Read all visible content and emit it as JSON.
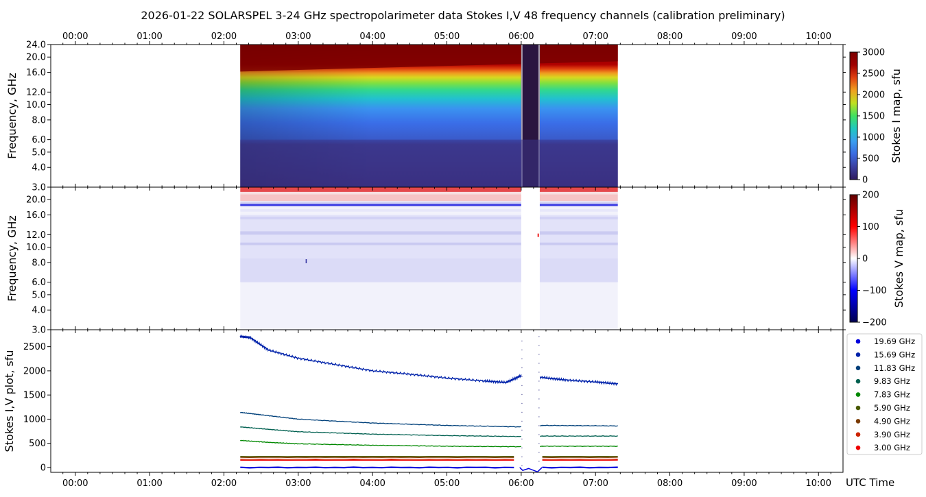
{
  "title": "2026-01-22  SOLARSPEL  3-24 GHz spectropolarimeter data   Stokes I,V   48 frequency channels   (calibration preliminary)",
  "time_axis_label": "UTC Time",
  "time_ticks": [
    "00:00",
    "01:00",
    "02:00",
    "03:00",
    "04:00",
    "05:00",
    "06:00",
    "07:00",
    "08:00",
    "09:00",
    "10:00"
  ],
  "colors": {
    "panel_border": "#000000",
    "gap_color": "#2a1540"
  },
  "chart_data": [
    {
      "type": "heatmap",
      "name": "Stokes I map",
      "ylabel": "Frequency, GHz",
      "y_scale": "log",
      "ylim": [
        3.0,
        24.0
      ],
      "y_ticks": [
        "24.0",
        "20.0",
        "16.0",
        "12.0",
        "10.0",
        "8.0",
        "6.0",
        "5.0",
        "4.0",
        "3.0"
      ],
      "xlim_hours": [
        -0.33,
        10.33
      ],
      "data_start_hours": 2.22,
      "data_end_hours": 7.3,
      "gap_hours": [
        6.0,
        6.25
      ],
      "colorbar": {
        "label": "Stokes I map, sfu",
        "range": [
          0,
          3000
        ],
        "ticks": [
          "3000",
          "2500",
          "2000",
          "1500",
          "1000",
          "500",
          "0"
        ],
        "colors": [
          "#2e1a5e",
          "#3a3fa0",
          "#3a6ae0",
          "#3a9ef0",
          "#20c8c0",
          "#40e060",
          "#c0e020",
          "#f0a020",
          "#e04010",
          "#a00000",
          "#7a0000"
        ]
      }
    },
    {
      "type": "heatmap",
      "name": "Stokes V map",
      "ylabel": "Frequency, GHz",
      "y_scale": "log",
      "ylim": [
        3.0,
        24.0
      ],
      "y_ticks": [
        "20.0",
        "16.0",
        "12.0",
        "10.0",
        "8.0",
        "6.0",
        "5.0",
        "4.0",
        "3.0"
      ],
      "xlim_hours": [
        -0.33,
        10.33
      ],
      "data_start_hours": 2.22,
      "data_end_hours": 7.3,
      "gap_hours": [
        6.0,
        6.25
      ],
      "colorbar": {
        "label": "Stokes V map, sfu",
        "range": [
          -200,
          200
        ],
        "ticks": [
          "200",
          "100",
          "0",
          "−100",
          "−200"
        ],
        "colors": [
          "#000050",
          "#0000ff",
          "#ffffff",
          "#ff0000",
          "#600000"
        ]
      }
    },
    {
      "type": "line",
      "name": "Stokes I,V plot",
      "ylabel": "Stokes I,V plot, sfu",
      "xlabel": "UTC Time",
      "ylim": [
        -100,
        2850
      ],
      "y_ticks": [
        2500,
        2000,
        1500,
        1000,
        500,
        0
      ],
      "xlim_hours": [
        -0.33,
        10.33
      ],
      "series": [
        {
          "name": "19.69 GHz",
          "color": "#0000dd",
          "x": [
            2.22,
            7.3
          ],
          "values": [
            0,
            0
          ]
        },
        {
          "name": "15.69 GHz",
          "color": "#0022aa",
          "x": [
            2.22,
            2.35,
            2.6,
            3.0,
            3.5,
            4.0,
            4.5,
            5.0,
            5.5,
            5.8,
            6.0,
            6.3,
            6.6,
            7.0,
            7.3
          ],
          "values": [
            2710,
            2690,
            2430,
            2260,
            2130,
            2000,
            1930,
            1850,
            1790,
            1760,
            1900,
            1860,
            1810,
            1770,
            1730
          ]
        },
        {
          "name": "11.83 GHz",
          "color": "#00407a",
          "x": [
            2.22,
            2.5,
            3.0,
            4.0,
            5.0,
            6.0,
            6.3,
            7.3
          ],
          "values": [
            1140,
            1090,
            1000,
            920,
            870,
            840,
            870,
            860
          ]
        },
        {
          "name": "9.83 GHz",
          "color": "#006050",
          "x": [
            2.22,
            2.6,
            3.0,
            4.0,
            5.0,
            6.0,
            6.3,
            7.3
          ],
          "values": [
            840,
            790,
            740,
            690,
            660,
            640,
            650,
            650
          ]
        },
        {
          "name": "7.83 GHz",
          "color": "#008800",
          "x": [
            2.22,
            2.6,
            3.0,
            4.0,
            5.0,
            6.0,
            6.3,
            7.3
          ],
          "values": [
            560,
            520,
            490,
            460,
            440,
            430,
            440,
            440
          ]
        },
        {
          "name": "5.90 GHz",
          "color": "#4a5a00",
          "x": [
            2.22,
            7.3
          ],
          "values": [
            230,
            230
          ]
        },
        {
          "name": "4.90 GHz",
          "color": "#7a3a00",
          "x": [
            2.22,
            7.3
          ],
          "values": [
            210,
            210
          ]
        },
        {
          "name": "3.90 GHz",
          "color": "#cc2200",
          "x": [
            2.22,
            7.3
          ],
          "values": [
            170,
            170
          ]
        },
        {
          "name": "3.00 GHz",
          "color": "#ee0000",
          "x": [
            2.22,
            7.3
          ],
          "values": [
            150,
            150
          ]
        }
      ],
      "legend_placement": "right"
    }
  ]
}
